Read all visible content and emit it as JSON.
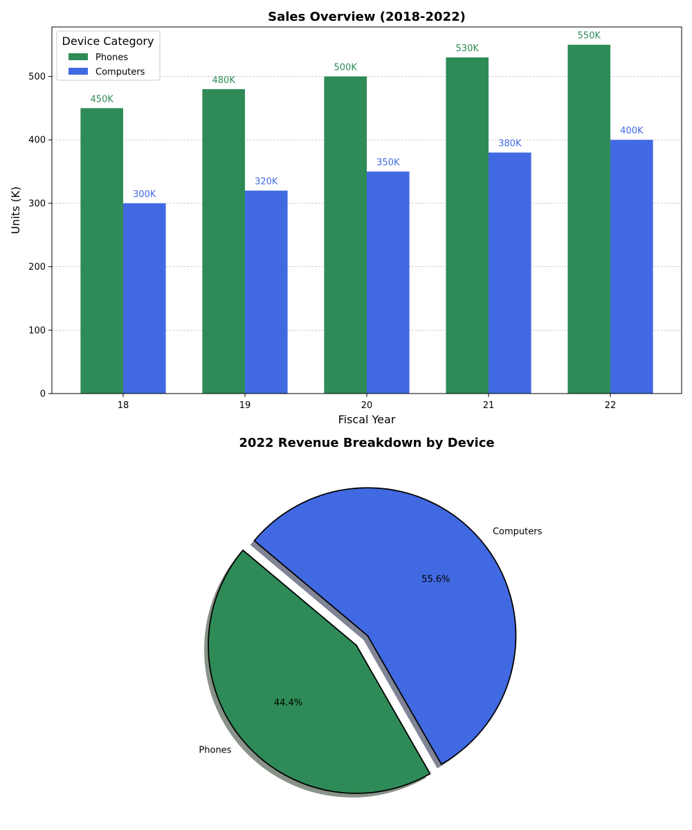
{
  "chart_data": [
    {
      "type": "bar",
      "title": "Sales Overview (2018-2022)",
      "xlabel": "Fiscal Year",
      "ylabel": "Units (K)",
      "categories": [
        "18",
        "19",
        "20",
        "21",
        "22"
      ],
      "series": [
        {
          "name": "Phones",
          "values": [
            450,
            480,
            500,
            530,
            550
          ],
          "labels": [
            "450K",
            "480K",
            "500K",
            "530K",
            "550K"
          ],
          "color": "#2e8b57"
        },
        {
          "name": "Computers",
          "values": [
            300,
            320,
            350,
            380,
            400
          ],
          "labels": [
            "300K",
            "320K",
            "350K",
            "380K",
            "400K"
          ],
          "color": "#4169e1"
        }
      ],
      "ylim": [
        0,
        578
      ],
      "yticks": [
        0,
        100,
        200,
        300,
        400,
        500
      ],
      "grid": "y-dashed",
      "legend": {
        "title": "Device Category",
        "position": "upper-left"
      }
    },
    {
      "type": "pie",
      "title": "2022 Revenue Breakdown by Device",
      "slices": [
        {
          "label": "Phones",
          "value": 44.4,
          "pct_label": "44.4%",
          "color": "#2e8b57",
          "exploded": false
        },
        {
          "label": "Computers",
          "value": 55.6,
          "pct_label": "55.6%",
          "color": "#4169e1",
          "exploded": true
        }
      ],
      "start_angle_deg": 140,
      "shadow": true
    }
  ]
}
